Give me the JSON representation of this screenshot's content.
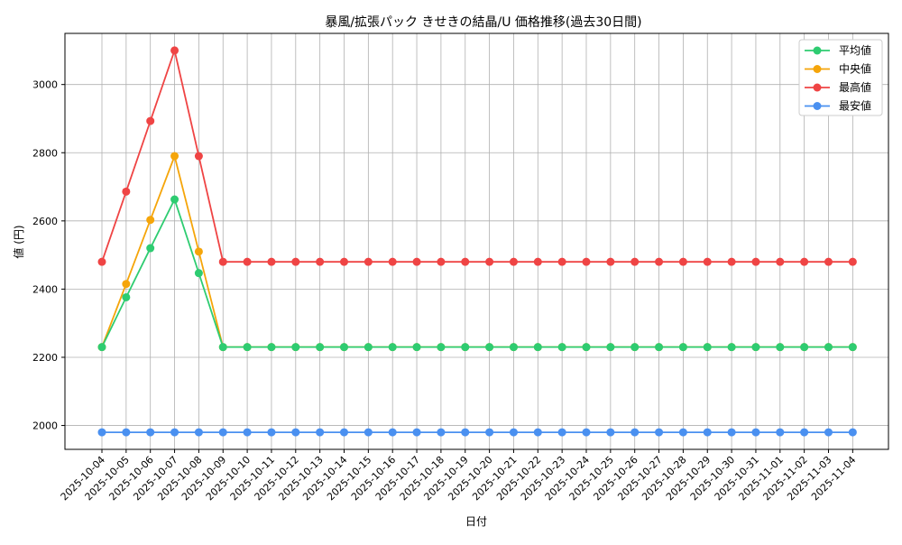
{
  "chart_data": {
    "type": "line",
    "title": "暴風/拡張パック きせきの結晶/U 価格推移(過去30日間)",
    "xlabel": "日付",
    "ylabel": "値 (円)",
    "ylim": [
      1930,
      3150
    ],
    "yticks": [
      2000,
      2200,
      2400,
      2600,
      2800,
      3000
    ],
    "grid": true,
    "legend_position": "top-right",
    "categories": [
      "2025-10-04",
      "2025-10-05",
      "2025-10-06",
      "2025-10-07",
      "2025-10-08",
      "2025-10-09",
      "2025-10-10",
      "2025-10-11",
      "2025-10-12",
      "2025-10-13",
      "2025-10-14",
      "2025-10-15",
      "2025-10-16",
      "2025-10-17",
      "2025-10-18",
      "2025-10-19",
      "2025-10-20",
      "2025-10-21",
      "2025-10-22",
      "2025-10-23",
      "2025-10-24",
      "2025-10-25",
      "2025-10-26",
      "2025-10-27",
      "2025-10-28",
      "2025-10-29",
      "2025-10-30",
      "2025-10-31",
      "2025-11-01",
      "2025-11-02",
      "2025-11-03",
      "2025-11-04"
    ],
    "series": [
      {
        "name": "平均値",
        "color": "#2ecc71",
        "values": [
          2230,
          2376,
          2520,
          2663,
          2447,
          2230,
          2230,
          2230,
          2230,
          2230,
          2230,
          2230,
          2230,
          2230,
          2230,
          2230,
          2230,
          2230,
          2230,
          2230,
          2230,
          2230,
          2230,
          2230,
          2230,
          2230,
          2230,
          2230,
          2230,
          2230,
          2230,
          2230
        ]
      },
      {
        "name": "中央値",
        "color": "#f5a50a",
        "values": [
          2230,
          2415,
          2603,
          2790,
          2510,
          2230,
          2230,
          2230,
          2230,
          2230,
          2230,
          2230,
          2230,
          2230,
          2230,
          2230,
          2230,
          2230,
          2230,
          2230,
          2230,
          2230,
          2230,
          2230,
          2230,
          2230,
          2230,
          2230,
          2230,
          2230,
          2230,
          2230
        ]
      },
      {
        "name": "最高値",
        "color": "#ef4444",
        "values": [
          2480,
          2686,
          2893,
          3100,
          2790,
          2480,
          2480,
          2480,
          2480,
          2480,
          2480,
          2480,
          2480,
          2480,
          2480,
          2480,
          2480,
          2480,
          2480,
          2480,
          2480,
          2480,
          2480,
          2480,
          2480,
          2480,
          2480,
          2480,
          2480,
          2480,
          2480,
          2480
        ]
      },
      {
        "name": "最安値",
        "color": "#4a90f0",
        "values": [
          1980,
          1980,
          1980,
          1980,
          1980,
          1980,
          1980,
          1980,
          1980,
          1980,
          1980,
          1980,
          1980,
          1980,
          1980,
          1980,
          1980,
          1980,
          1980,
          1980,
          1980,
          1980,
          1980,
          1980,
          1980,
          1980,
          1980,
          1980,
          1980,
          1980,
          1980,
          1980
        ]
      }
    ]
  }
}
